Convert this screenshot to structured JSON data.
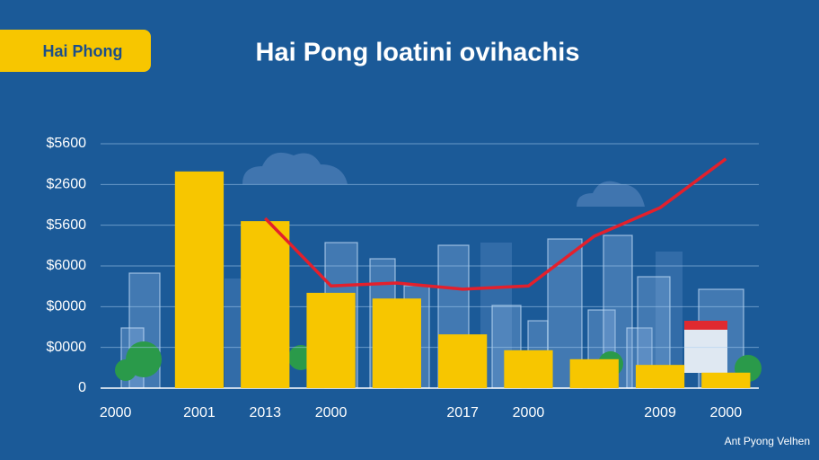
{
  "badge": "Hai Phong",
  "footer": "Ant Pyong Velhen",
  "chart_data": {
    "type": "bar",
    "title": "Hai Pong loatini ovihachis",
    "categories": [
      "2000",
      "2001",
      "2013",
      "2000",
      null,
      "2017",
      "2000",
      null,
      "2009",
      "2000"
    ],
    "series": [
      {
        "type": "bar",
        "color": "#f7c600",
        "values": [
          null,
          5.32,
          4.1,
          2.34,
          2.2,
          1.32,
          0.93,
          0.71,
          0.57,
          0.38
        ]
      },
      {
        "type": "line",
        "color": "#e3202c",
        "values": [
          null,
          null,
          4.17,
          2.51,
          2.58,
          2.43,
          2.51,
          3.73,
          4.43,
          5.63
        ]
      }
    ],
    "ylim": [
      0,
      6
    ],
    "yticks": [
      0,
      {
        "value": 1,
        "label": "$0000"
      },
      {
        "value": 2,
        "label": "$0000"
      },
      {
        "value": 3,
        "label": "$6000"
      },
      {
        "value": 4,
        "label": "$5600"
      },
      {
        "value": 5,
        "label": "$2600"
      },
      {
        "value": 6,
        "label": "$5600"
      }
    ],
    "grid": true
  }
}
